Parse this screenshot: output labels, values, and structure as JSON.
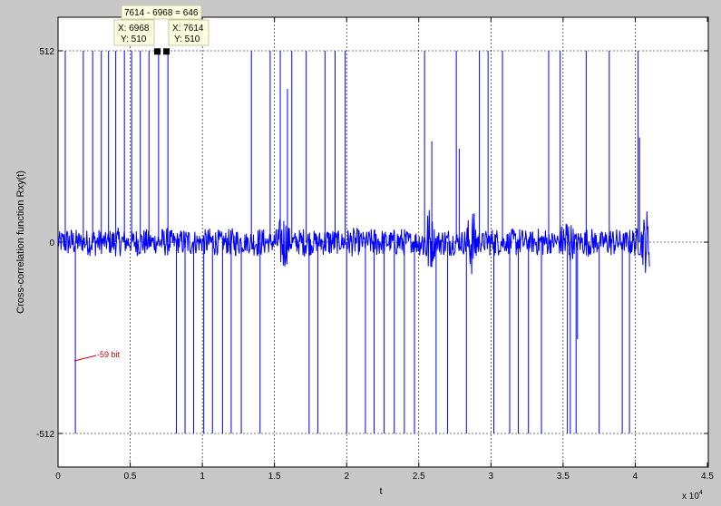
{
  "chart_data": {
    "type": "line",
    "xlabel": "t",
    "ylabel": "Cross-correlation function Rxy(t)",
    "xlim": [
      0,
      45000
    ],
    "ylim": [
      -600,
      600
    ],
    "x_exponent_label": "x 10",
    "x_exponent_power": "4",
    "x_ticks": [
      0,
      5000,
      10000,
      15000,
      20000,
      25000,
      30000,
      35000,
      40000,
      45000
    ],
    "x_tick_labels": [
      "0",
      "0.5",
      "1",
      "1.5",
      "2",
      "2.5",
      "3",
      "3.5",
      "4",
      "4.5"
    ],
    "y_ticks": [
      -512,
      0,
      512
    ],
    "y_tick_labels": [
      "-512",
      "0",
      "512"
    ],
    "grid": true,
    "series_color": "#0000ff",
    "noise_amplitude": 30,
    "signal_end": 41000,
    "peaks": [
      {
        "x": 500,
        "y": 512
      },
      {
        "x": 1200,
        "y": -512
      },
      {
        "x": 1750,
        "y": 512
      },
      {
        "x": 2400,
        "y": 512
      },
      {
        "x": 3000,
        "y": 512
      },
      {
        "x": 3500,
        "y": 512
      },
      {
        "x": 4000,
        "y": 512
      },
      {
        "x": 4600,
        "y": 512
      },
      {
        "x": 5100,
        "y": 512
      },
      {
        "x": 5700,
        "y": 512
      },
      {
        "x": 6300,
        "y": 512
      },
      {
        "x": 6968,
        "y": 510
      },
      {
        "x": 7614,
        "y": 510
      },
      {
        "x": 8200,
        "y": -512
      },
      {
        "x": 8800,
        "y": -512
      },
      {
        "x": 9400,
        "y": -512
      },
      {
        "x": 10100,
        "y": -512
      },
      {
        "x": 10700,
        "y": -512
      },
      {
        "x": 11400,
        "y": -512
      },
      {
        "x": 12000,
        "y": -512
      },
      {
        "x": 12700,
        "y": -512
      },
      {
        "x": 13400,
        "y": 512
      },
      {
        "x": 14000,
        "y": -512
      },
      {
        "x": 14700,
        "y": 512
      },
      {
        "x": 15400,
        "y": 512
      },
      {
        "x": 15900,
        "y": 410
      },
      {
        "x": 16200,
        "y": 512
      },
      {
        "x": 17200,
        "y": 512
      },
      {
        "x": 17400,
        "y": -512
      },
      {
        "x": 18000,
        "y": -512
      },
      {
        "x": 18500,
        "y": 512
      },
      {
        "x": 19200,
        "y": 512
      },
      {
        "x": 19900,
        "y": 512
      },
      {
        "x": 20000,
        "y": -512
      },
      {
        "x": 21300,
        "y": -512
      },
      {
        "x": 21900,
        "y": -512
      },
      {
        "x": 22600,
        "y": -512
      },
      {
        "x": 23300,
        "y": -512
      },
      {
        "x": 24000,
        "y": -512
      },
      {
        "x": 24700,
        "y": -512
      },
      {
        "x": 25400,
        "y": 512
      },
      {
        "x": 25900,
        "y": 270
      },
      {
        "x": 26200,
        "y": -512
      },
      {
        "x": 27000,
        "y": -512
      },
      {
        "x": 27600,
        "y": 512
      },
      {
        "x": 27800,
        "y": 250
      },
      {
        "x": 28300,
        "y": -512
      },
      {
        "x": 29200,
        "y": 512
      },
      {
        "x": 29800,
        "y": 512
      },
      {
        "x": 30200,
        "y": -512
      },
      {
        "x": 30800,
        "y": 512
      },
      {
        "x": 31300,
        "y": -512
      },
      {
        "x": 31900,
        "y": -512
      },
      {
        "x": 32600,
        "y": -512
      },
      {
        "x": 33500,
        "y": -512
      },
      {
        "x": 34000,
        "y": 512
      },
      {
        "x": 34800,
        "y": 512
      },
      {
        "x": 35300,
        "y": -512
      },
      {
        "x": 35500,
        "y": -512
      },
      {
        "x": 35900,
        "y": -512
      },
      {
        "x": 36000,
        "y": -260
      },
      {
        "x": 36600,
        "y": 512
      },
      {
        "x": 37500,
        "y": -512
      },
      {
        "x": 38200,
        "y": 512
      },
      {
        "x": 39100,
        "y": -512
      },
      {
        "x": 39600,
        "y": -512
      },
      {
        "x": 40200,
        "y": 512
      },
      {
        "x": 40300,
        "y": 280
      }
    ]
  },
  "datatips": [
    {
      "x_text": "X: 6968",
      "y_text": "Y: 510",
      "x": 6968,
      "y": 510
    },
    {
      "x_text": "X: 7614",
      "y_text": "Y: 510",
      "x": 7614,
      "y": 510
    }
  ],
  "diff_label": "7614 - 6968 = 646",
  "annotation": {
    "text": "-59 bit",
    "color": "#cc0000"
  }
}
